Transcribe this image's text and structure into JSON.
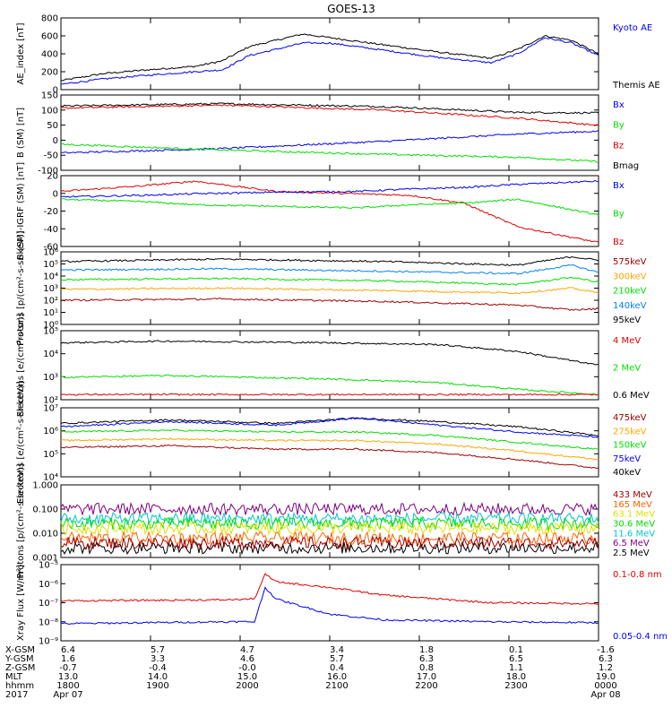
{
  "title": "GOES-13",
  "colors": {
    "black": "#000000",
    "blue": "#0000ff",
    "green": "#00e000",
    "red": "#e00000",
    "orange": "#ffa500",
    "cyan": "#00c8c8",
    "yellow": "#e0e000",
    "purple": "#800080",
    "maroon": "#a00000",
    "darkorange": "#ff6000",
    "lightblue": "#0080ff"
  },
  "chart_data": [
    {
      "type": "line",
      "ylabel": "AE_index [nT]",
      "ylim": [
        0,
        800
      ],
      "yticks": [
        "800",
        "600",
        "400",
        "200",
        "0"
      ],
      "scale": "linear",
      "legend": [
        {
          "label": "Kyoto AE",
          "color": "#0000ff"
        },
        {
          "label": "Themis AE",
          "color": "#000000"
        }
      ],
      "series": [
        {
          "name": "Themis AE",
          "color": "#000000",
          "x": [
            0,
            0.08,
            0.16,
            0.25,
            0.3,
            0.35,
            0.45,
            0.5,
            0.6,
            0.7,
            0.8,
            0.85,
            0.9,
            0.95,
            1
          ],
          "values": [
            100,
            180,
            220,
            260,
            320,
            480,
            620,
            580,
            500,
            420,
            350,
            450,
            600,
            550,
            400
          ]
        },
        {
          "name": "Kyoto AE",
          "color": "#0000ff",
          "x": [
            0,
            0.08,
            0.16,
            0.25,
            0.3,
            0.35,
            0.45,
            0.5,
            0.6,
            0.7,
            0.8,
            0.85,
            0.9,
            0.95,
            1
          ],
          "values": [
            60,
            120,
            160,
            200,
            220,
            380,
            520,
            520,
            440,
            360,
            300,
            400,
            580,
            520,
            380
          ]
        }
      ]
    },
    {
      "type": "line",
      "ylabel": "B (SM) [nT]",
      "ylim": [
        -110,
        150
      ],
      "yticks": [
        "150",
        "100",
        "50",
        "0",
        "-50",
        "-100"
      ],
      "scale": "linear",
      "legend": [
        {
          "label": "Bx",
          "color": "#0000ff"
        },
        {
          "label": "By",
          "color": "#00e000"
        },
        {
          "label": "Bz",
          "color": "#e00000"
        },
        {
          "label": "Bmag",
          "color": "#000000"
        }
      ],
      "series": [
        {
          "name": "Bmag",
          "color": "#000000",
          "x": [
            0,
            0.3,
            0.6,
            0.85,
            1
          ],
          "values": [
            112,
            120,
            110,
            90,
            88
          ]
        },
        {
          "name": "Bz",
          "color": "#e00000",
          "x": [
            0,
            0.3,
            0.6,
            0.85,
            1
          ],
          "values": [
            105,
            115,
            98,
            70,
            45
          ]
        },
        {
          "name": "Bx",
          "color": "#0000ff",
          "x": [
            0,
            0.3,
            0.6,
            0.85,
            1
          ],
          "values": [
            -50,
            -35,
            -10,
            15,
            25
          ]
        },
        {
          "name": "By",
          "color": "#00e000",
          "x": [
            0,
            0.3,
            0.6,
            0.85,
            1
          ],
          "values": [
            -20,
            -40,
            -55,
            -65,
            -80
          ]
        }
      ]
    },
    {
      "type": "line",
      "ylabel": "B (SM)-IGRF (SM) [nT]",
      "ylim": [
        -65,
        25
      ],
      "yticks": [
        "20",
        "0",
        "-20",
        "-40",
        "-60"
      ],
      "scale": "linear",
      "legend": [
        {
          "label": "Bx",
          "color": "#0000ff"
        },
        {
          "label": "By",
          "color": "#00e000"
        },
        {
          "label": "Bz",
          "color": "#e00000"
        }
      ],
      "series": [
        {
          "name": "Bz",
          "color": "#e00000",
          "x": [
            0,
            0.15,
            0.25,
            0.4,
            0.55,
            0.65,
            0.75,
            0.85,
            1
          ],
          "values": [
            5,
            12,
            18,
            5,
            2,
            0,
            -10,
            -40,
            -60
          ]
        },
        {
          "name": "Bx",
          "color": "#0000ff",
          "x": [
            0,
            0.15,
            0.25,
            0.4,
            0.55,
            0.65,
            0.75,
            0.85,
            1
          ],
          "values": [
            -2,
            0,
            2,
            4,
            5,
            8,
            10,
            14,
            18
          ]
        },
        {
          "name": "By",
          "color": "#00e000",
          "x": [
            0,
            0.15,
            0.25,
            0.4,
            0.55,
            0.65,
            0.75,
            0.85,
            1
          ],
          "values": [
            -5,
            -8,
            -12,
            -14,
            -16,
            -12,
            -10,
            -5,
            -25
          ]
        }
      ]
    },
    {
      "type": "line",
      "ylabel": "Protons [p/(cm²-s-sr-keV)]",
      "ylim": [
        0,
        6
      ],
      "yticks": [
        "10⁶",
        "10⁵",
        "10⁴",
        "10³",
        "10²",
        "10¹",
        "10⁰"
      ],
      "scale": "log10",
      "legend": [
        {
          "label": "575keV",
          "color": "#a00000"
        },
        {
          "label": "300keV",
          "color": "#ffa500"
        },
        {
          "label": "210keV",
          "color": "#00e000"
        },
        {
          "label": "140keV",
          "color": "#0080ff"
        },
        {
          "label": "95keV",
          "color": "#000000"
        }
      ],
      "series": [
        {
          "name": "95keV",
          "color": "#000000",
          "x": [
            0,
            0.3,
            0.6,
            0.85,
            0.95,
            1
          ],
          "values": [
            5.2,
            5.4,
            5.2,
            4.9,
            5.6,
            5.3
          ]
        },
        {
          "name": "140keV",
          "color": "#0080ff",
          "x": [
            0,
            0.3,
            0.6,
            0.85,
            0.95,
            1
          ],
          "values": [
            4.5,
            4.6,
            4.4,
            4.2,
            4.9,
            4.3
          ]
        },
        {
          "name": "210keV",
          "color": "#00e000",
          "x": [
            0,
            0.3,
            0.6,
            0.85,
            0.95,
            1
          ],
          "values": [
            3.7,
            3.8,
            3.6,
            3.3,
            3.9,
            3.5
          ]
        },
        {
          "name": "300keV",
          "color": "#ffa500",
          "x": [
            0,
            0.3,
            0.6,
            0.85,
            0.95,
            1
          ],
          "values": [
            2.9,
            3.0,
            2.8,
            2.6,
            3.0,
            2.6
          ]
        },
        {
          "name": "575keV",
          "color": "#a00000",
          "x": [
            0,
            0.3,
            0.6,
            0.85,
            0.95,
            1
          ],
          "values": [
            2.0,
            2.1,
            1.9,
            1.6,
            1.2,
            1.3
          ]
        }
      ]
    },
    {
      "type": "line",
      "ylabel": "Electrons [e/(cm²-s-sr)]",
      "ylim": [
        1,
        5
      ],
      "yticks": [
        "10⁵",
        "10⁴",
        "10³",
        "10²"
      ],
      "scale": "log10",
      "legend": [
        {
          "label": "4 MeV",
          "color": "#e00000"
        },
        {
          "label": "2 MeV",
          "color": "#00e000"
        },
        {
          "label": "0.6 MeV",
          "color": "#000000"
        }
      ],
      "series": [
        {
          "name": "0.6 MeV",
          "color": "#000000",
          "x": [
            0,
            0.2,
            0.5,
            0.7,
            0.85,
            1
          ],
          "values": [
            4.3,
            4.4,
            4.3,
            4.2,
            3.8,
            3.0
          ]
        },
        {
          "name": "2 MeV",
          "color": "#00e000",
          "x": [
            0,
            0.2,
            0.5,
            0.7,
            0.85,
            1
          ],
          "values": [
            2.3,
            2.4,
            2.2,
            2.0,
            1.6,
            1.3
          ]
        },
        {
          "name": "4 MeV",
          "color": "#e00000",
          "x": [
            0,
            0.2,
            0.5,
            0.7,
            0.85,
            1
          ],
          "values": [
            1.3,
            1.3,
            1.3,
            1.3,
            1.3,
            1.3
          ]
        }
      ]
    },
    {
      "type": "line",
      "ylabel": "Electrons [e/(cm²-s-sr-keV)]",
      "ylim": [
        3,
        7
      ],
      "yticks": [
        "10⁷",
        "10⁶",
        "10⁵",
        "10⁴"
      ],
      "scale": "log10",
      "legend": [
        {
          "label": "475keV",
          "color": "#a00000"
        },
        {
          "label": "275keV",
          "color": "#ffa500"
        },
        {
          "label": "150keV",
          "color": "#00e000"
        },
        {
          "label": "75keV",
          "color": "#0000ff"
        },
        {
          "label": "40keV",
          "color": "#000000"
        }
      ],
      "series": [
        {
          "name": "40keV",
          "color": "#000000",
          "x": [
            0,
            0.2,
            0.4,
            0.55,
            0.7,
            0.85,
            1
          ],
          "values": [
            6.1,
            6.3,
            6.1,
            6.4,
            6.2,
            5.9,
            5.4
          ]
        },
        {
          "name": "75keV",
          "color": "#0000ff",
          "x": [
            0,
            0.2,
            0.4,
            0.55,
            0.7,
            0.85,
            1
          ],
          "values": [
            5.9,
            6.2,
            6.0,
            6.4,
            6.0,
            5.6,
            5.3
          ]
        },
        {
          "name": "150keV",
          "color": "#00e000",
          "x": [
            0,
            0.2,
            0.4,
            0.55,
            0.7,
            0.85,
            1
          ],
          "values": [
            5.6,
            5.7,
            5.6,
            5.6,
            5.4,
            5.0,
            4.6
          ]
        },
        {
          "name": "275keV",
          "color": "#ffa500",
          "x": [
            0,
            0.2,
            0.4,
            0.55,
            0.7,
            0.85,
            1
          ],
          "values": [
            5.1,
            5.2,
            5.1,
            5.1,
            4.9,
            4.5,
            4.0
          ]
        },
        {
          "name": "475keV",
          "color": "#a00000",
          "x": [
            0,
            0.2,
            0.4,
            0.55,
            0.7,
            0.85,
            1
          ],
          "values": [
            4.7,
            4.8,
            4.6,
            4.6,
            4.4,
            4.0,
            3.5
          ]
        }
      ]
    },
    {
      "type": "line",
      "ylabel": "Protons [p/(cm²-s-sr-keV)]",
      "ylim": [
        -3,
        0
      ],
      "yticks": [
        "1.000",
        "0.100",
        "0.010",
        "0.001"
      ],
      "scale": "log10",
      "noisy": true,
      "legend": [
        {
          "label": "433 MeV",
          "color": "#a00000"
        },
        {
          "label": "165 MeV",
          "color": "#ff6000"
        },
        {
          "label": "63.1 MeV",
          "color": "#e0e000"
        },
        {
          "label": "30.6 MeV",
          "color": "#00e000"
        },
        {
          "label": "11.6 MeV",
          "color": "#00c8c8"
        },
        {
          "label": "6.5 MeV",
          "color": "#800080"
        },
        {
          "label": "2.5 MeV",
          "color": "#000000"
        }
      ],
      "series": [
        {
          "name": "2.5 MeV",
          "color": "#000000",
          "x": [
            0,
            1
          ],
          "values": [
            -2.6,
            -2.6
          ]
        },
        {
          "name": "6.5 MeV",
          "color": "#800080",
          "x": [
            0,
            1
          ],
          "values": [
            -1.0,
            -1.0
          ]
        },
        {
          "name": "11.6 MeV",
          "color": "#00c8c8",
          "x": [
            0,
            1
          ],
          "values": [
            -1.4,
            -1.4
          ]
        },
        {
          "name": "30.6 MeV",
          "color": "#00e000",
          "x": [
            0,
            1
          ],
          "values": [
            -1.6,
            -1.6
          ]
        },
        {
          "name": "63.1 MeV",
          "color": "#e0e000",
          "x": [
            0,
            1
          ],
          "values": [
            -1.8,
            -1.8
          ]
        },
        {
          "name": "165 MeV",
          "color": "#ff6000",
          "x": [
            0,
            1
          ],
          "values": [
            -2.2,
            -2.2
          ]
        },
        {
          "name": "433 MeV",
          "color": "#a00000",
          "x": [
            0,
            1
          ],
          "values": [
            -2.4,
            -2.4
          ]
        }
      ]
    },
    {
      "type": "line",
      "ylabel": "Xray Flux [W/m²]",
      "ylim": [
        -9,
        -5
      ],
      "yticks": [
        "10⁻⁵",
        "10⁻⁶",
        "10⁻⁷",
        "10⁻⁸",
        "10⁻⁹"
      ],
      "scale": "log10",
      "legend": [
        {
          "label": "0.1-0.8 nm",
          "color": "#e00000"
        },
        {
          "label": "0.05-0.4 nm",
          "color": "#0000ff"
        }
      ],
      "series": [
        {
          "name": "0.1-0.8 nm",
          "color": "#e00000",
          "x": [
            0,
            0.3,
            0.36,
            0.38,
            0.4,
            0.5,
            0.6,
            0.8,
            1
          ],
          "values": [
            -6.9,
            -6.85,
            -6.8,
            -5.5,
            -5.9,
            -6.2,
            -6.6,
            -7.0,
            -7.05
          ]
        },
        {
          "name": "0.05-0.4 nm",
          "color": "#0000ff",
          "x": [
            0,
            0.3,
            0.36,
            0.38,
            0.4,
            0.5,
            0.6,
            0.8,
            1
          ],
          "values": [
            -8.1,
            -8.0,
            -8.0,
            -6.2,
            -6.8,
            -7.6,
            -7.9,
            -8.0,
            -8.05
          ]
        }
      ]
    }
  ],
  "coordinates": {
    "labels": [
      "X-GSM",
      "Y-GSM",
      "Z-GSM",
      "MLT",
      "hhmm",
      "2017"
    ],
    "columns": [
      [
        "6.4",
        "1.6",
        "-0.7",
        "13.0",
        "1800",
        "Apr 07"
      ],
      [
        "5.7",
        "3.3",
        "-0.4",
        "14.0",
        "1900",
        ""
      ],
      [
        "4.7",
        "4.6",
        "-0.0",
        "15.0",
        "2000",
        ""
      ],
      [
        "3.4",
        "5.7",
        "0.4",
        "16.0",
        "2100",
        ""
      ],
      [
        "1.8",
        "6.3",
        "0.8",
        "17.0",
        "2200",
        ""
      ],
      [
        "0.1",
        "6.5",
        "1.1",
        "18.0",
        "2300",
        ""
      ],
      [
        "-1.6",
        "6.3",
        "1.2",
        "19.0",
        "0000",
        "Apr 08"
      ]
    ]
  }
}
